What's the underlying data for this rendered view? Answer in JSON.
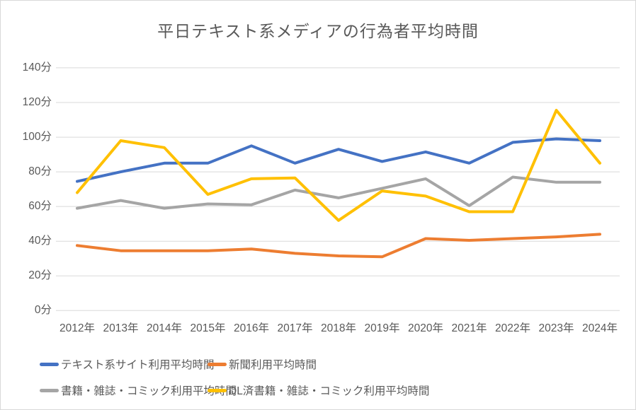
{
  "chart_data": {
    "type": "line",
    "title": "平日テキスト系メディアの行為者平均時間",
    "unit_suffix": "分",
    "categories": [
      "2012年",
      "2013年",
      "2014年",
      "2015年",
      "2016年",
      "2017年",
      "2018年",
      "2019年",
      "2020年",
      "2021年",
      "2022年",
      "2023年",
      "2024年"
    ],
    "y_ticks": [
      0,
      20,
      40,
      60,
      80,
      100,
      120,
      140
    ],
    "ylim": [
      0,
      140
    ],
    "grid": "horizontal-only",
    "legend_position": "bottom-two-rows",
    "series": [
      {
        "name": "テキスト系サイト利用平均時間",
        "color": "#4472C4",
        "values": [
          74.5,
          80,
          85,
          85,
          95,
          85,
          93,
          86,
          91.5,
          85,
          97,
          99,
          98
        ]
      },
      {
        "name": "新聞利用平均時間",
        "color": "#ED7D31",
        "values": [
          37.5,
          34.5,
          34.5,
          34.5,
          35.5,
          33,
          31.5,
          31,
          41.5,
          40.5,
          41.5,
          42.5,
          44
        ]
      },
      {
        "name": "書籍・雑誌・コミック利用平均時間",
        "color": "#A5A5A5",
        "values": [
          59,
          63.5,
          59,
          61.5,
          61,
          69.5,
          65,
          70.5,
          76,
          60.5,
          77,
          74,
          74
        ]
      },
      {
        "name": "DL済書籍・雑誌・コミック利用平均時間",
        "color": "#FFC000",
        "values": [
          68,
          98,
          94,
          67,
          76,
          76.5,
          52,
          69,
          66,
          57,
          57,
          115.5,
          85
        ]
      }
    ]
  },
  "colors": {
    "axis_text": "#595959",
    "title_text": "#595959",
    "gridline": "#D9D9D9",
    "border": "#D9D9D9",
    "background": "#FFFFFF"
  }
}
